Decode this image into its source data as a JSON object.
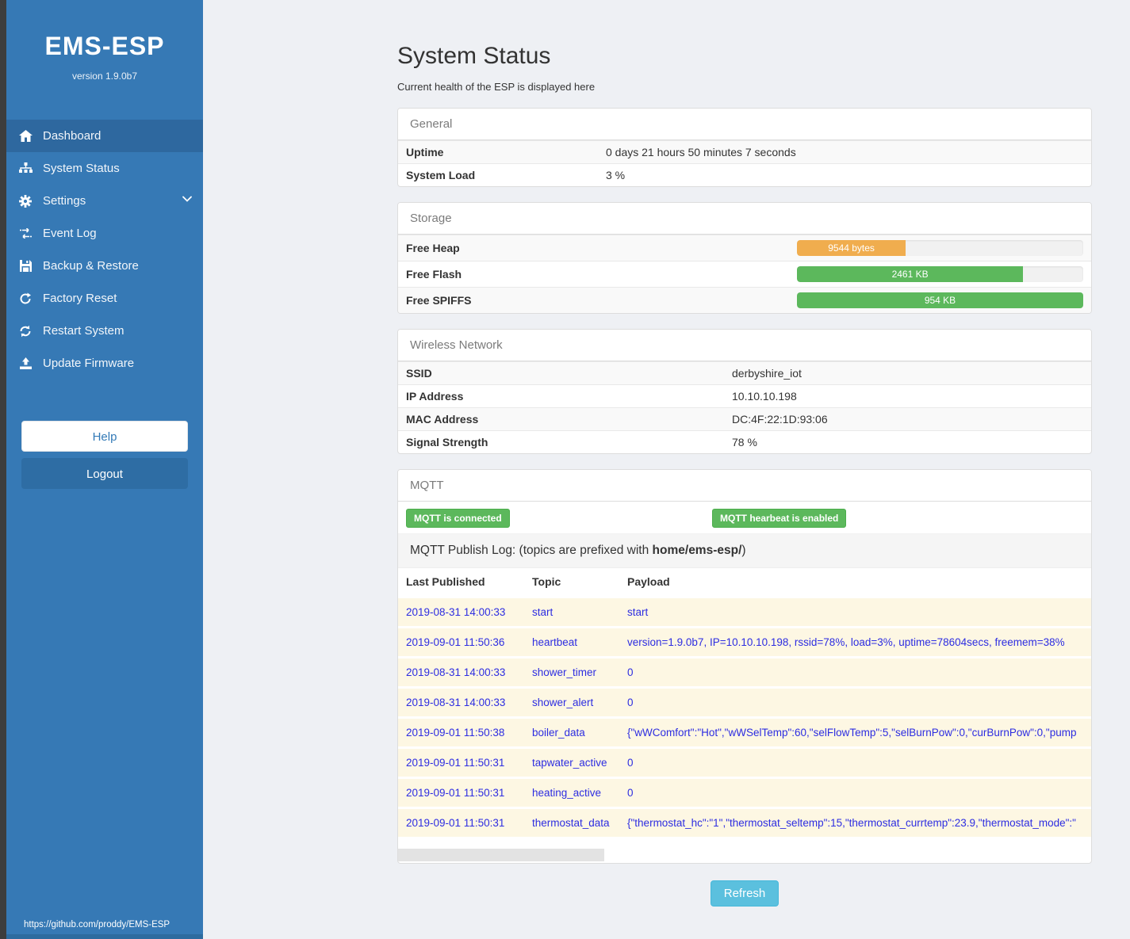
{
  "sidebar": {
    "brand": "EMS-ESP",
    "version": "version 1.9.0b7",
    "items": [
      {
        "label": "Dashboard"
      },
      {
        "label": "System Status"
      },
      {
        "label": "Settings"
      },
      {
        "label": "Event Log"
      },
      {
        "label": "Backup & Restore"
      },
      {
        "label": "Factory Reset"
      },
      {
        "label": "Restart System"
      },
      {
        "label": "Update Firmware"
      }
    ],
    "help_label": "Help",
    "logout_label": "Logout",
    "footer_link": "https://github.com/proddy/EMS-ESP"
  },
  "page": {
    "title": "System Status",
    "subtitle": "Current health of the ESP is displayed here",
    "refresh_label": "Refresh"
  },
  "panels": {
    "general": {
      "title": "General",
      "rows": [
        {
          "label": "Uptime",
          "value": "0 days 21 hours 50 minutes 7 seconds"
        },
        {
          "label": "System Load",
          "value": "3 %"
        }
      ]
    },
    "storage": {
      "title": "Storage",
      "rows": [
        {
          "label": "Free Heap",
          "bar_label": "9544 bytes",
          "percent": 38,
          "color": "#f0ad4e"
        },
        {
          "label": "Free Flash",
          "bar_label": "2461 KB",
          "percent": 79,
          "color": "#5cb85c"
        },
        {
          "label": "Free SPIFFS",
          "bar_label": "954 KB",
          "percent": 100,
          "color": "#5cb85c"
        }
      ]
    },
    "wireless": {
      "title": "Wireless Network",
      "rows": [
        {
          "label": "SSID",
          "value": "derbyshire_iot"
        },
        {
          "label": "IP Address",
          "value": "10.10.10.198"
        },
        {
          "label": "MAC Address",
          "value": "DC:4F:22:1D:93:06"
        },
        {
          "label": "Signal Strength",
          "value": "78 %"
        }
      ]
    },
    "mqtt": {
      "title": "MQTT",
      "badges": [
        "MQTT is connected",
        "MQTT hearbeat is enabled"
      ],
      "caption_prefix": "MQTT Publish Log: (topics are prefixed with ",
      "caption_bold": "home/ems-esp/",
      "caption_suffix": ")",
      "table": {
        "headers": [
          "Last Published",
          "Topic",
          "Payload"
        ],
        "rows": [
          {
            "time": "2019-08-31 14:00:33",
            "topic": "start",
            "payload": "start"
          },
          {
            "time": "2019-09-01 11:50:36",
            "topic": "heartbeat",
            "payload": "version=1.9.0b7, IP=10.10.10.198, rssid=78%, load=3%, uptime=78604secs, freemem=38%"
          },
          {
            "time": "2019-08-31 14:00:33",
            "topic": "shower_timer",
            "payload": "0"
          },
          {
            "time": "2019-08-31 14:00:33",
            "topic": "shower_alert",
            "payload": "0"
          },
          {
            "time": "2019-09-01 11:50:38",
            "topic": "boiler_data",
            "payload": "{\"wWComfort\":\"Hot\",\"wWSelTemp\":60,\"selFlowTemp\":5,\"selBurnPow\":0,\"curBurnPow\":0,\"pump"
          },
          {
            "time": "2019-09-01 11:50:31",
            "topic": "tapwater_active",
            "payload": "0"
          },
          {
            "time": "2019-09-01 11:50:31",
            "topic": "heating_active",
            "payload": "0"
          },
          {
            "time": "2019-09-01 11:50:31",
            "topic": "thermostat_data",
            "payload": "{\"thermostat_hc\":\"1\",\"thermostat_seltemp\":15,\"thermostat_currtemp\":23.9,\"thermostat_mode\":\""
          }
        ]
      }
    }
  },
  "colors": {
    "sidebar": "#3679b5",
    "sidebar_active": "#2e689f",
    "badge_green": "#5cb85c",
    "bar_orange": "#f0ad4e",
    "bar_green": "#5cb85c",
    "refresh_blue": "#5bc0de",
    "log_row_bg": "#fdf7e3",
    "log_text_blue": "#2d2de1"
  }
}
